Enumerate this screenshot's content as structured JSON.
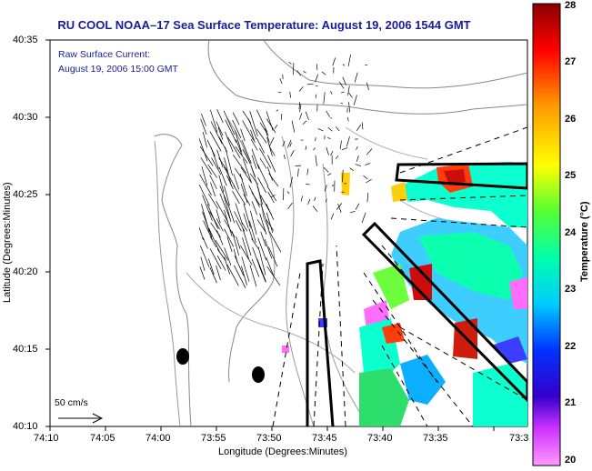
{
  "title": "RU COOL  NOAA–17  Sea Surface Temperature:  August 19, 2006 1544 GMT",
  "notes": {
    "line1": "Raw Surface Current:",
    "line2": "August 19, 2006 15:00 GMT"
  },
  "scale_label": "50 cm/s",
  "axes": {
    "xlabel": "Longitude (Degrees:Minutes)",
    "ylabel": "Latitude (Degrees:Minutes)",
    "x_ticks": [
      "74:10",
      "74:05",
      "74:00",
      "73:55",
      "73:50",
      "73:45",
      "73:40",
      "73:35",
      "73:3"
    ],
    "y_ticks": [
      "40:35",
      "40:30",
      "40:25",
      "40:20",
      "40:15",
      "40:10"
    ]
  },
  "colorbar": {
    "label": "Temperature (°C)",
    "ticks": [
      "28",
      "27",
      "26",
      "25",
      "24",
      "23",
      "22",
      "21",
      "20"
    ],
    "min": 20,
    "max": 28,
    "colors": [
      "#ff66ff",
      "#8800cc",
      "#0000ff",
      "#00aaff",
      "#00ffcc",
      "#66ff33",
      "#ffff00",
      "#ff9900",
      "#ff0000",
      "#8b0000"
    ]
  },
  "colors": {
    "title": "#1a1a9a",
    "land_contour": "#888888",
    "vector": "#000000"
  }
}
